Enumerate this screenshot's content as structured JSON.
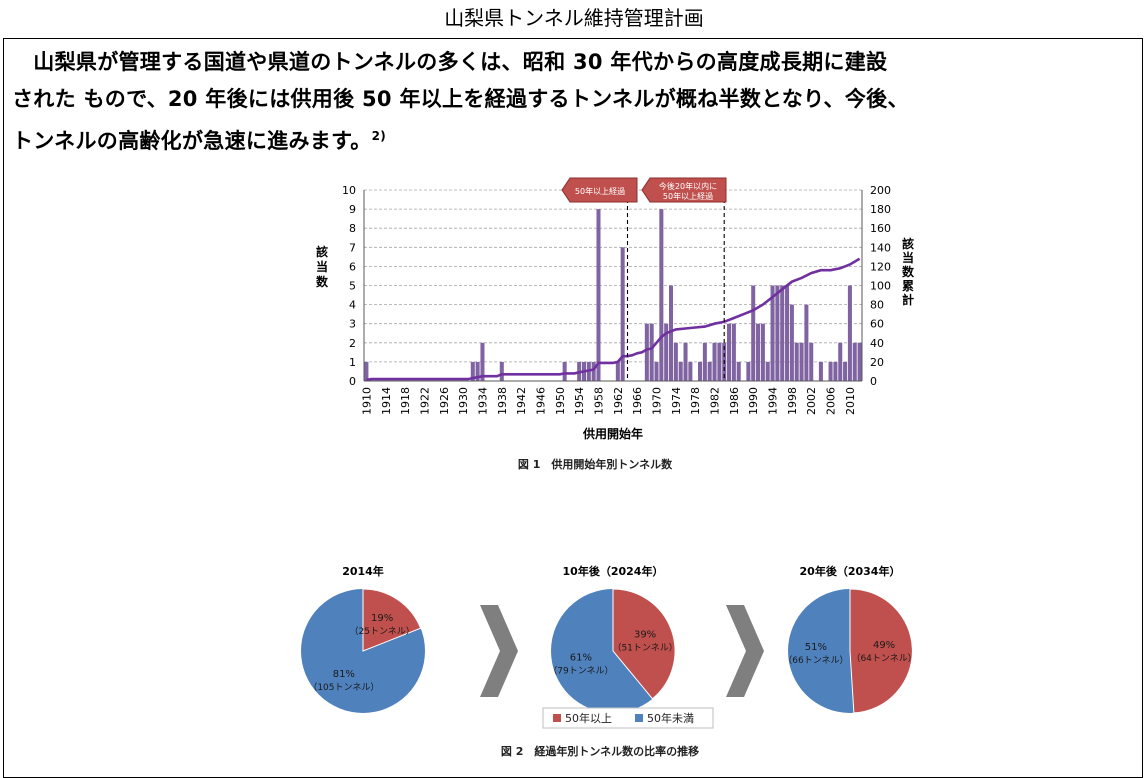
{
  "document": {
    "title": "山梨県トンネル維持管理計画",
    "paragraph_lines": [
      "　山梨県が管理する国道や県道のトンネルの多くは、昭和 30 年代からの高度成長期に建設",
      "された もので、20 年後には供用後 50 年以上を経過するトンネルが概ね半数となり、今後、",
      "トンネルの高齢化が急速に進みます。"
    ],
    "footnote_mark": "2)"
  },
  "figure1": {
    "caption": "図 1　供用開始年別トンネル数",
    "annotations": {
      "over50": "50年以上経過",
      "within20_l1": "今後20年以内に",
      "within20_l2": "50年以上経過"
    }
  },
  "figure2": {
    "caption": "図 2　経過年別トンネル数の比率の推移",
    "legend": [
      "50年以上",
      "50年未満"
    ],
    "colors": {
      "over50": "#c0504d",
      "under50": "#4f81bd"
    }
  },
  "chart_data": [
    {
      "type": "bar",
      "title": "",
      "xlabel": "供用開始年",
      "ylabel": "該当数",
      "y2label": "該当数累計",
      "ylim": [
        0,
        10
      ],
      "y2lim": [
        0,
        200
      ],
      "xlim": [
        1910,
        2013
      ],
      "xticks": [
        1910,
        1914,
        1918,
        1922,
        1926,
        1930,
        1934,
        1938,
        1942,
        1946,
        1950,
        1954,
        1958,
        1962,
        1966,
        1970,
        1974,
        1978,
        1982,
        1986,
        1990,
        1994,
        1998,
        2002,
        2006,
        2010
      ],
      "yticks": [
        0,
        1,
        2,
        3,
        4,
        5,
        6,
        7,
        8,
        9,
        10
      ],
      "y2ticks": [
        0,
        20,
        40,
        60,
        80,
        100,
        120,
        140,
        160,
        180,
        200
      ],
      "vlines": [
        1964.5,
        1984.5
      ],
      "series": [
        {
          "kind": "bar",
          "x": [
            1910,
            1932,
            1933,
            1934,
            1938,
            1951,
            1954,
            1955,
            1956,
            1957,
            1958,
            1962,
            1963,
            1968,
            1969,
            1970,
            1971,
            1972,
            1973,
            1974,
            1975,
            1976,
            1977,
            1979,
            1980,
            1981,
            1982,
            1983,
            1984,
            1985,
            1986,
            1987,
            1989,
            1990,
            1991,
            1992,
            1993,
            1994,
            1995,
            1996,
            1997,
            1998,
            1999,
            2000,
            2001,
            2002,
            2004,
            2006,
            2007,
            2008,
            2009,
            2010,
            2011,
            2012
          ],
          "values": [
            1,
            1,
            1,
            2,
            1,
            1,
            1,
            1,
            1,
            1,
            9,
            1,
            7,
            3,
            3,
            1,
            9,
            3,
            5,
            2,
            1,
            2,
            1,
            1,
            2,
            1,
            2,
            2,
            2,
            3,
            3,
            1,
            1,
            5,
            3,
            3,
            1,
            5,
            5,
            5,
            5,
            4,
            2,
            2,
            4,
            2,
            1,
            1,
            1,
            2,
            1,
            5,
            2,
            2
          ]
        },
        {
          "kind": "line",
          "x": [
            1910,
            1911,
            1931,
            1932,
            1933,
            1934,
            1937,
            1938,
            1950,
            1951,
            1953,
            1954,
            1955,
            1956,
            1957,
            1958,
            1961,
            1962,
            1963,
            1964,
            1965,
            1966,
            1967,
            1968,
            1969,
            1970,
            1971,
            1972,
            1973,
            1974,
            1976,
            1978,
            1980,
            1982,
            1984,
            1986,
            1988,
            1990,
            1992,
            1994,
            1996,
            1998,
            2000,
            2002,
            2004,
            2006,
            2008,
            2010,
            2012
          ],
          "values": [
            1,
            2,
            2,
            3,
            4,
            5,
            5,
            7,
            7,
            8,
            8,
            9,
            10,
            11,
            12,
            19,
            19,
            20,
            26,
            26,
            27,
            29,
            30,
            33,
            34,
            40,
            46,
            50,
            52,
            54,
            55,
            56,
            57,
            60,
            62,
            66,
            70,
            74,
            80,
            88,
            96,
            104,
            108,
            113,
            116,
            116,
            118,
            122,
            128
          ]
        }
      ]
    },
    {
      "type": "pie",
      "title": "2014年",
      "slices": [
        {
          "label": "50年以上",
          "value": 19,
          "text1": "19%",
          "text2": "（25トンネル）"
        },
        {
          "label": "50年未満",
          "value": 81,
          "text1": "81%",
          "text2": "（105トンネル）"
        }
      ]
    },
    {
      "type": "pie",
      "title": "10年後（2024年）",
      "slices": [
        {
          "label": "50年以上",
          "value": 39,
          "text1": "39%",
          "text2": "（51トンネル）"
        },
        {
          "label": "50年未満",
          "value": 61,
          "text1": "61%",
          "text2": "（79トンネル）"
        }
      ]
    },
    {
      "type": "pie",
      "title": "20年後（2034年）",
      "slices": [
        {
          "label": "50年以上",
          "value": 49,
          "text1": "49%",
          "text2": "（64トンネル）"
        },
        {
          "label": "50年未満",
          "value": 51,
          "text1": "51%",
          "text2": "（66トンネル）"
        }
      ]
    }
  ]
}
